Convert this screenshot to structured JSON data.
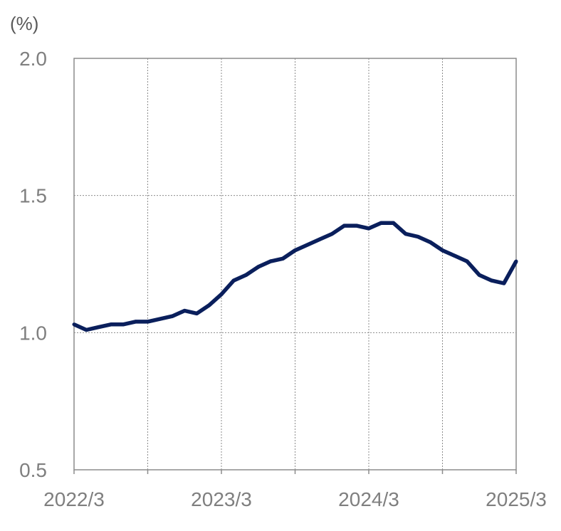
{
  "chart_data": {
    "type": "line",
    "title": "",
    "xlabel": "",
    "ylabel": "(%)",
    "ylim": [
      0.5,
      2.0
    ],
    "y_ticks": [
      "2.0",
      "1.5",
      "1.0",
      "0.5"
    ],
    "x_ticks": [
      "2022/3",
      "2023/3",
      "2024/3",
      "2025/3"
    ],
    "grid": true,
    "x": [
      "2022/3",
      "2022/4",
      "2022/5",
      "2022/6",
      "2022/7",
      "2022/8",
      "2022/9",
      "2022/10",
      "2022/11",
      "2022/12",
      "2023/1",
      "2023/2",
      "2023/3",
      "2023/4",
      "2023/5",
      "2023/6",
      "2023/7",
      "2023/8",
      "2023/9",
      "2023/10",
      "2023/11",
      "2023/12",
      "2024/1",
      "2024/2",
      "2024/3",
      "2024/4",
      "2024/5",
      "2024/6",
      "2024/7",
      "2024/8",
      "2024/9",
      "2024/10",
      "2024/11",
      "2024/12",
      "2025/1",
      "2025/2",
      "2025/3"
    ],
    "series": [
      {
        "color": "#0a1f5c",
        "values": [
          1.03,
          1.01,
          1.02,
          1.03,
          1.03,
          1.04,
          1.04,
          1.05,
          1.06,
          1.08,
          1.07,
          1.1,
          1.14,
          1.19,
          1.21,
          1.24,
          1.26,
          1.27,
          1.3,
          1.32,
          1.34,
          1.36,
          1.39,
          1.39,
          1.38,
          1.4,
          1.4,
          1.36,
          1.35,
          1.33,
          1.3,
          1.28,
          1.26,
          1.21,
          1.19,
          1.18,
          1.26
        ]
      }
    ]
  }
}
